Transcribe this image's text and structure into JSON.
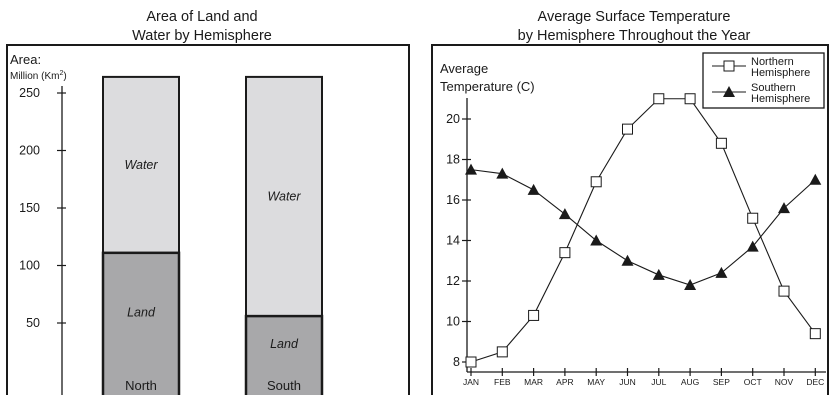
{
  "chart_data": [
    {
      "type": "bar",
      "stacked": true,
      "title_line1": "Area of Land and",
      "title_line2": "Water by Hemisphere",
      "ylabel_line1": "Area:",
      "ylabel_line2": "Million (Km",
      "ylabel_sup": "2",
      "ylabel_close": ")",
      "ylim": [
        0,
        260
      ],
      "yticks": [
        50,
        100,
        150,
        200,
        250
      ],
      "grid": false,
      "categories": [
        "North",
        "South"
      ],
      "series": [
        {
          "name": "Land",
          "values": [
            111,
            56
          ],
          "color": "#a8a8aa"
        },
        {
          "name": "Water",
          "values": [
            153,
            208
          ],
          "color": "#dcdcde"
        }
      ],
      "segment_labels": {
        "land": "Land",
        "water": "Water"
      }
    },
    {
      "type": "line",
      "title_line1": "Average Surface Temperature",
      "title_line2": "by Hemisphere Throughout the Year",
      "ylabel_line1": "Average",
      "ylabel_line2": "Temperature (C)",
      "ylim": [
        7.5,
        22.5
      ],
      "yticks": [
        8,
        10,
        12,
        14,
        16,
        18,
        20
      ],
      "grid": false,
      "legend_position": "top-right",
      "x": [
        "JAN",
        "FEB",
        "MAR",
        "APR",
        "MAY",
        "JUN",
        "JUL",
        "AUG",
        "SEP",
        "OCT",
        "NOV",
        "DEC"
      ],
      "series": [
        {
          "name_line1": "Northern",
          "name_line2": "Hemisphere",
          "marker": "open-square",
          "values": [
            8.0,
            8.5,
            10.3,
            13.4,
            16.9,
            19.5,
            21.0,
            21.0,
            18.8,
            15.1,
            11.5,
            9.4
          ]
        },
        {
          "name_line1": "Southern",
          "name_line2": "Hemisphere",
          "marker": "filled-triangle",
          "values": [
            17.5,
            17.3,
            16.5,
            15.3,
            14.0,
            13.0,
            12.3,
            11.8,
            12.4,
            13.7,
            15.6,
            17.0
          ]
        }
      ]
    }
  ]
}
